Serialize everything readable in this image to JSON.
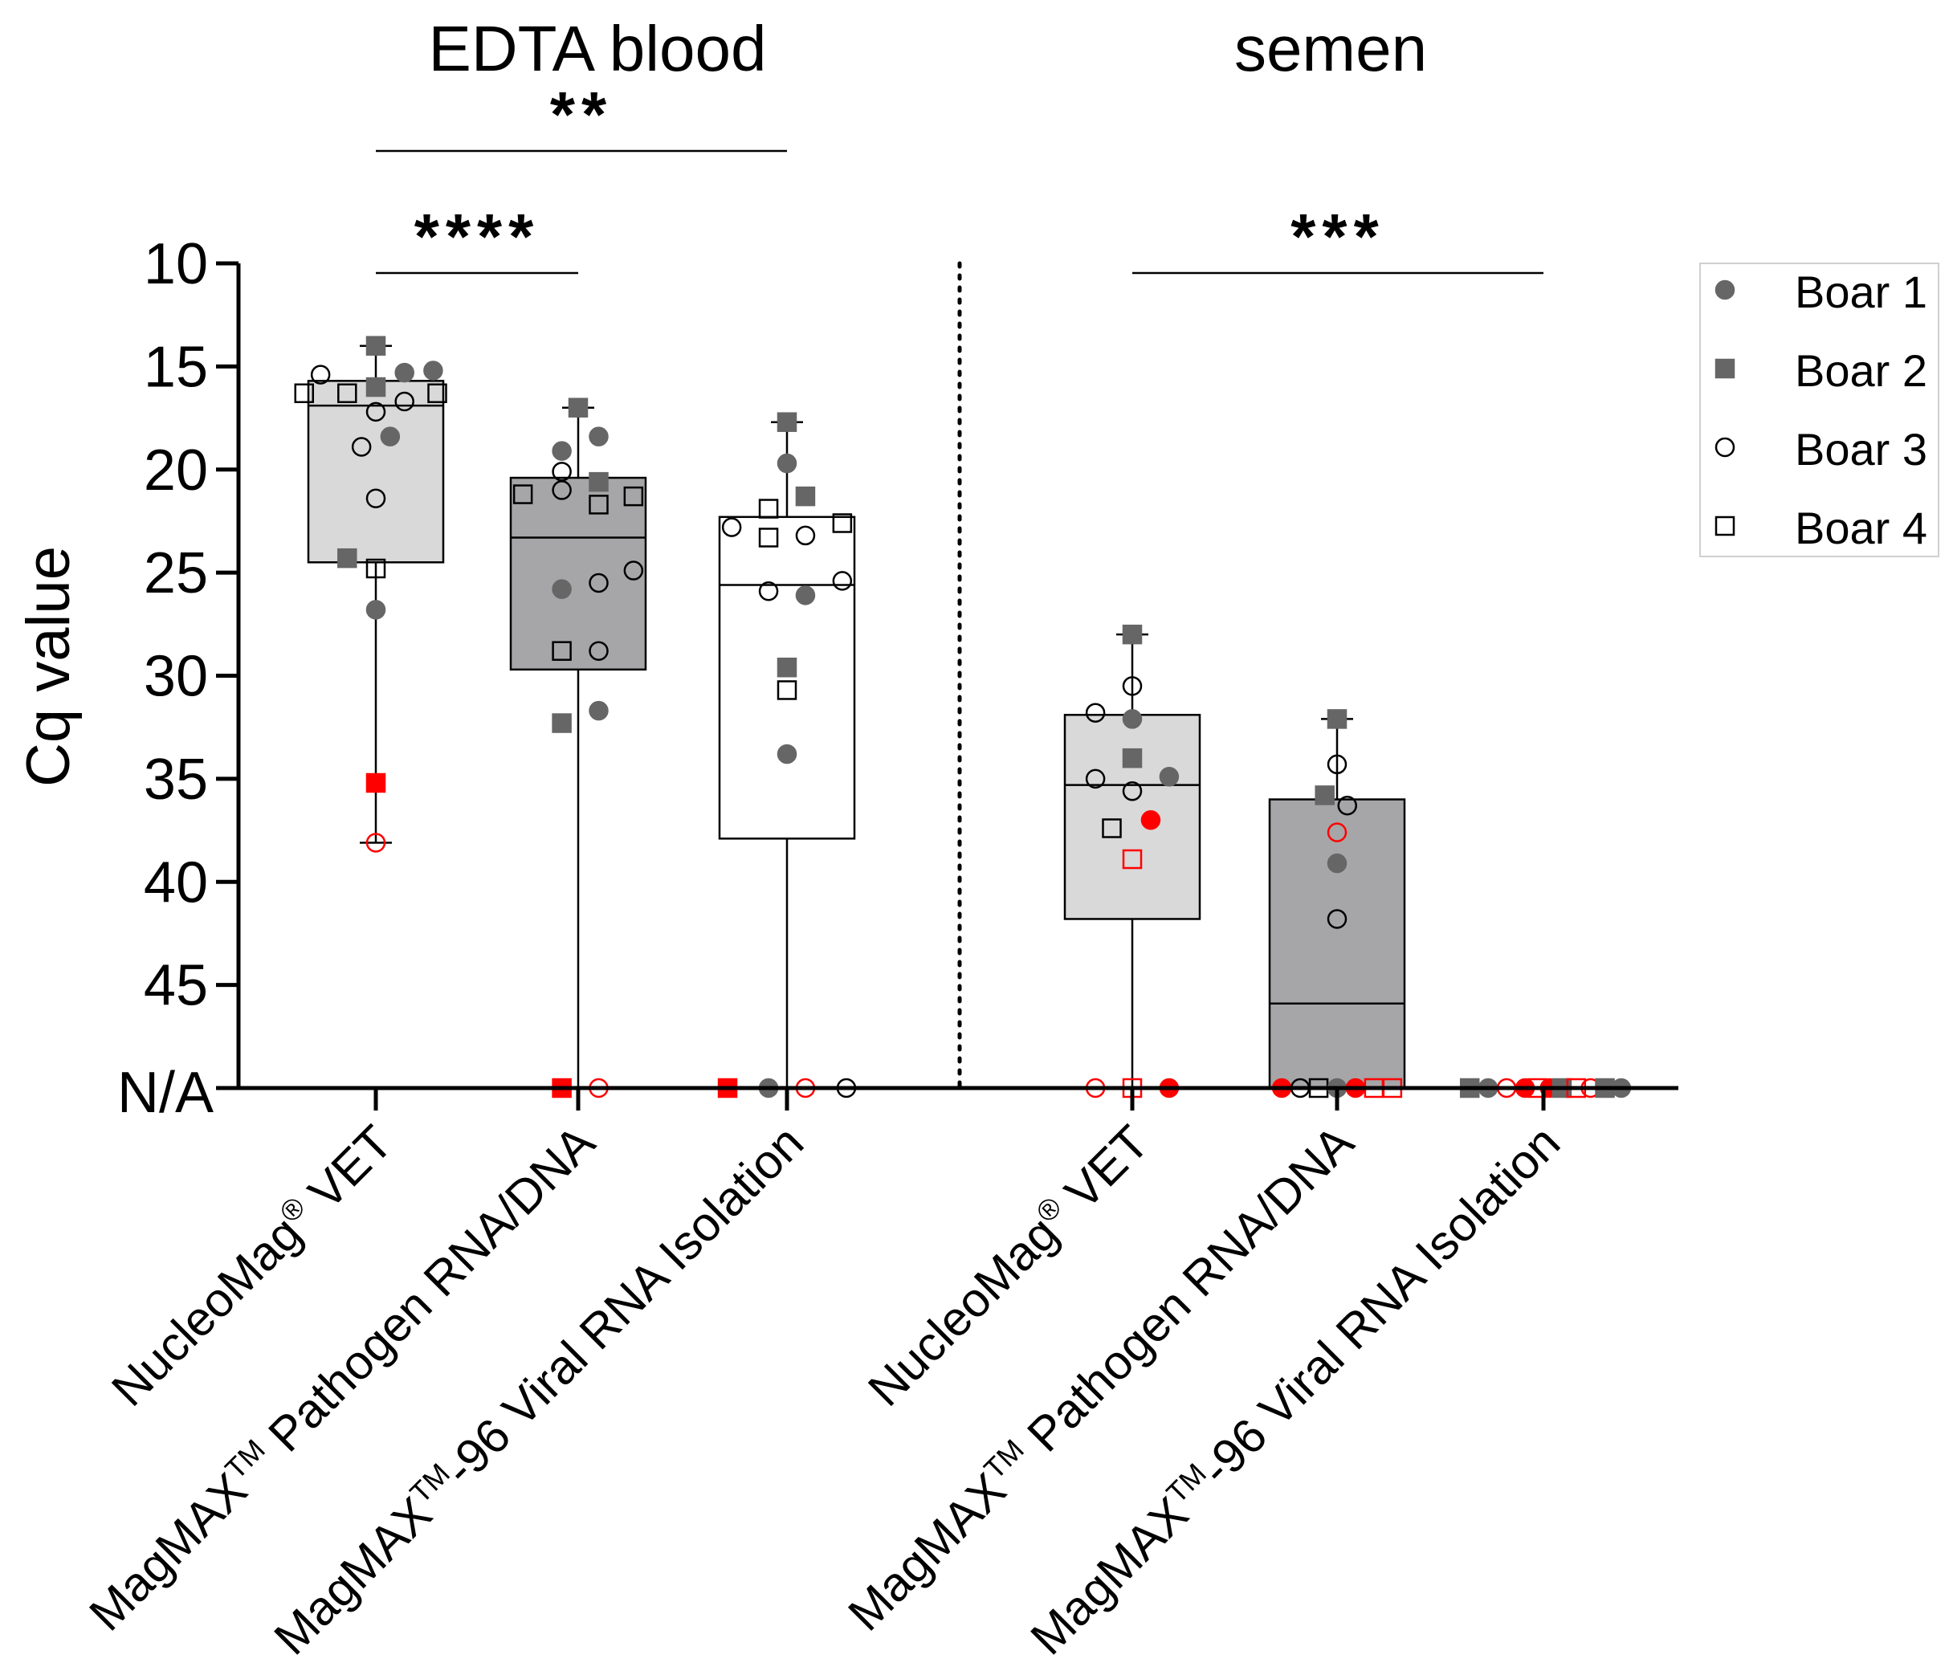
{
  "chart_data": {
    "type": "box",
    "title": "",
    "ylabel": "Cq value",
    "ylim": [
      10,
      50
    ],
    "y_inverted": true,
    "yticks": [
      10,
      15,
      20,
      25,
      30,
      35,
      40,
      45
    ],
    "na_label": "N/A",
    "na_value": 50,
    "panels": [
      {
        "name": "EDTA blood",
        "categories": [
          0,
          1,
          2
        ]
      },
      {
        "name": "semen",
        "categories": [
          3,
          4,
          5
        ]
      }
    ],
    "categories": [
      {
        "main": "NucleoMag",
        "sup": "®",
        "rest": " VET"
      },
      {
        "main": "MagMAX",
        "sup": "TM",
        "rest": " Pathogen RNA/DNA"
      },
      {
        "main": "MagMAX",
        "sup": "TM",
        "rest": "-96 Viral RNA Isolation"
      },
      {
        "main": "NucleoMag",
        "sup": "®",
        "rest": " VET"
      },
      {
        "main": "MagMAX",
        "sup": "TM",
        "rest": " Pathogen RNA/DNA"
      },
      {
        "main": "MagMAX",
        "sup": "TM",
        "rest": "-96 Viral RNA Isolation"
      }
    ],
    "boxes": [
      {
        "category": 0,
        "q1": 15.7,
        "median": 16.9,
        "q3": 24.5,
        "whisker_low": 14.0,
        "whisker_high": 38.1,
        "fill": "#d9d9d9"
      },
      {
        "category": 1,
        "q1": 20.4,
        "median": 23.3,
        "q3": 29.7,
        "whisker_low": 17.0,
        "whisker_high": 50,
        "fill": "#a6a6a8"
      },
      {
        "category": 2,
        "q1": 22.3,
        "median": 25.6,
        "q3": 37.9,
        "whisker_low": 17.7,
        "whisker_high": 50,
        "fill": "#ffffff"
      },
      {
        "category": 3,
        "q1": 31.9,
        "median": 35.3,
        "q3": 41.8,
        "whisker_low": 28.0,
        "whisker_high": 50,
        "fill": "#d9d9d9"
      },
      {
        "category": 4,
        "q1": 36.0,
        "median": 45.9,
        "q3": 50,
        "whisker_low": 32.1,
        "whisker_high": 50,
        "fill": "#a6a6a8"
      }
    ],
    "points": [
      {
        "category": 0,
        "y": 15.4,
        "dx": -0.27,
        "boar": 3,
        "red": false
      },
      {
        "category": 0,
        "y": 14.0,
        "dx": 0.0,
        "boar": 2,
        "red": false
      },
      {
        "category": 0,
        "y": 15.3,
        "dx": 0.14,
        "boar": 1,
        "red": false
      },
      {
        "category": 0,
        "y": 15.2,
        "dx": 0.28,
        "boar": 1,
        "red": false
      },
      {
        "category": 0,
        "y": 16.0,
        "dx": 0.0,
        "boar": 2,
        "red": false
      },
      {
        "category": 0,
        "y": 16.3,
        "dx": -0.35,
        "boar": 4,
        "red": false
      },
      {
        "category": 0,
        "y": 16.3,
        "dx": -0.14,
        "boar": 4,
        "red": false
      },
      {
        "category": 0,
        "y": 16.7,
        "dx": 0.14,
        "boar": 3,
        "red": false
      },
      {
        "category": 0,
        "y": 16.3,
        "dx": 0.3,
        "boar": 4,
        "red": false
      },
      {
        "category": 0,
        "y": 17.2,
        "dx": 0.0,
        "boar": 3,
        "red": false
      },
      {
        "category": 0,
        "y": 18.4,
        "dx": 0.07,
        "boar": 1,
        "red": false
      },
      {
        "category": 0,
        "y": 18.9,
        "dx": -0.07,
        "boar": 3,
        "red": false
      },
      {
        "category": 0,
        "y": 21.4,
        "dx": 0.0,
        "boar": 3,
        "red": false
      },
      {
        "category": 0,
        "y": 24.3,
        "dx": -0.14,
        "boar": 2,
        "red": false
      },
      {
        "category": 0,
        "y": 24.8,
        "dx": 0.0,
        "boar": 4,
        "red": false
      },
      {
        "category": 0,
        "y": 26.8,
        "dx": 0.0,
        "boar": 1,
        "red": false
      },
      {
        "category": 0,
        "y": 35.2,
        "dx": 0.0,
        "boar": 2,
        "red": true
      },
      {
        "category": 0,
        "y": 38.1,
        "dx": 0.0,
        "boar": 3,
        "red": true
      },
      {
        "category": 1,
        "y": 17.0,
        "dx": 0.0,
        "boar": 2,
        "red": false
      },
      {
        "category": 1,
        "y": 18.4,
        "dx": 0.1,
        "boar": 1,
        "red": false
      },
      {
        "category": 1,
        "y": 19.1,
        "dx": -0.08,
        "boar": 1,
        "red": false
      },
      {
        "category": 1,
        "y": 20.1,
        "dx": -0.08,
        "boar": 3,
        "red": false
      },
      {
        "category": 1,
        "y": 20.6,
        "dx": 0.1,
        "boar": 2,
        "red": false
      },
      {
        "category": 1,
        "y": 21.0,
        "dx": -0.08,
        "boar": 3,
        "red": false
      },
      {
        "category": 1,
        "y": 21.2,
        "dx": -0.27,
        "boar": 4,
        "red": false
      },
      {
        "category": 1,
        "y": 21.7,
        "dx": 0.1,
        "boar": 4,
        "red": false
      },
      {
        "category": 1,
        "y": 21.3,
        "dx": 0.27,
        "boar": 4,
        "red": false
      },
      {
        "category": 1,
        "y": 24.9,
        "dx": 0.27,
        "boar": 3,
        "red": false
      },
      {
        "category": 1,
        "y": 25.5,
        "dx": 0.1,
        "boar": 3,
        "red": false
      },
      {
        "category": 1,
        "y": 25.8,
        "dx": -0.08,
        "boar": 1,
        "red": false
      },
      {
        "category": 1,
        "y": 28.8,
        "dx": -0.08,
        "boar": 4,
        "red": false
      },
      {
        "category": 1,
        "y": 28.8,
        "dx": 0.1,
        "boar": 3,
        "red": false
      },
      {
        "category": 1,
        "y": 31.7,
        "dx": 0.1,
        "boar": 1,
        "red": false
      },
      {
        "category": 1,
        "y": 32.3,
        "dx": -0.08,
        "boar": 2,
        "red": false
      },
      {
        "category": 1,
        "y": 50,
        "dx": -0.08,
        "boar": 2,
        "red": true
      },
      {
        "category": 1,
        "y": 50,
        "dx": 0.1,
        "boar": 3,
        "red": true
      },
      {
        "category": 2,
        "y": 17.7,
        "dx": 0.0,
        "boar": 2,
        "red": false
      },
      {
        "category": 2,
        "y": 19.7,
        "dx": 0.0,
        "boar": 1,
        "red": false
      },
      {
        "category": 2,
        "y": 21.3,
        "dx": 0.09,
        "boar": 2,
        "red": false
      },
      {
        "category": 2,
        "y": 21.9,
        "dx": -0.09,
        "boar": 4,
        "red": false
      },
      {
        "category": 2,
        "y": 22.6,
        "dx": 0.27,
        "boar": 4,
        "red": false
      },
      {
        "category": 2,
        "y": 22.8,
        "dx": -0.27,
        "boar": 3,
        "red": false
      },
      {
        "category": 2,
        "y": 23.2,
        "dx": 0.09,
        "boar": 3,
        "red": false
      },
      {
        "category": 2,
        "y": 23.3,
        "dx": -0.09,
        "boar": 4,
        "red": false
      },
      {
        "category": 2,
        "y": 25.4,
        "dx": 0.27,
        "boar": 3,
        "red": false
      },
      {
        "category": 2,
        "y": 25.9,
        "dx": -0.09,
        "boar": 3,
        "red": false
      },
      {
        "category": 2,
        "y": 26.1,
        "dx": 0.09,
        "boar": 1,
        "red": false
      },
      {
        "category": 2,
        "y": 29.6,
        "dx": 0.0,
        "boar": 2,
        "red": false
      },
      {
        "category": 2,
        "y": 30.7,
        "dx": 0.0,
        "boar": 4,
        "red": false
      },
      {
        "category": 2,
        "y": 33.8,
        "dx": 0.0,
        "boar": 1,
        "red": false
      },
      {
        "category": 2,
        "y": 50,
        "dx": -0.29,
        "boar": 2,
        "red": true
      },
      {
        "category": 2,
        "y": 50,
        "dx": -0.09,
        "boar": 1,
        "red": false
      },
      {
        "category": 2,
        "y": 50,
        "dx": 0.09,
        "boar": 3,
        "red": true
      },
      {
        "category": 2,
        "y": 50,
        "dx": 0.29,
        "boar": 3,
        "red": false
      },
      {
        "category": 3,
        "y": 28.0,
        "dx": 0.0,
        "boar": 2,
        "red": false
      },
      {
        "category": 3,
        "y": 30.5,
        "dx": 0.0,
        "boar": 3,
        "red": false
      },
      {
        "category": 3,
        "y": 31.8,
        "dx": -0.18,
        "boar": 3,
        "red": false
      },
      {
        "category": 3,
        "y": 32.1,
        "dx": 0.0,
        "boar": 1,
        "red": false
      },
      {
        "category": 3,
        "y": 34.0,
        "dx": 0.0,
        "boar": 2,
        "red": false
      },
      {
        "category": 3,
        "y": 34.9,
        "dx": 0.18,
        "boar": 1,
        "red": false
      },
      {
        "category": 3,
        "y": 35.0,
        "dx": -0.18,
        "boar": 3,
        "red": false
      },
      {
        "category": 3,
        "y": 35.6,
        "dx": 0.0,
        "boar": 3,
        "red": false
      },
      {
        "category": 3,
        "y": 37.0,
        "dx": 0.09,
        "boar": 1,
        "red": true
      },
      {
        "category": 3,
        "y": 37.4,
        "dx": -0.1,
        "boar": 4,
        "red": false
      },
      {
        "category": 3,
        "y": 38.9,
        "dx": 0.0,
        "boar": 4,
        "red": true
      },
      {
        "category": 3,
        "y": 50,
        "dx": -0.18,
        "boar": 3,
        "red": true
      },
      {
        "category": 3,
        "y": 50,
        "dx": 0.0,
        "boar": 4,
        "red": true
      },
      {
        "category": 3,
        "y": 50,
        "dx": 0.18,
        "boar": 1,
        "red": true
      },
      {
        "category": 4,
        "y": 32.1,
        "dx": 0.0,
        "boar": 2,
        "red": false
      },
      {
        "category": 4,
        "y": 34.3,
        "dx": 0.0,
        "boar": 3,
        "red": false
      },
      {
        "category": 4,
        "y": 35.8,
        "dx": -0.06,
        "boar": 2,
        "red": false
      },
      {
        "category": 4,
        "y": 36.3,
        "dx": 0.05,
        "boar": 3,
        "red": false
      },
      {
        "category": 4,
        "y": 37.6,
        "dx": 0.0,
        "boar": 3,
        "red": true
      },
      {
        "category": 4,
        "y": 39.1,
        "dx": 0.0,
        "boar": 1,
        "red": false
      },
      {
        "category": 4,
        "y": 41.8,
        "dx": 0.0,
        "boar": 3,
        "red": false
      },
      {
        "category": 4,
        "y": 50,
        "dx": -0.27,
        "boar": 1,
        "red": true
      },
      {
        "category": 4,
        "y": 50,
        "dx": -0.18,
        "boar": 3,
        "red": false
      },
      {
        "category": 4,
        "y": 50,
        "dx": -0.09,
        "boar": 4,
        "red": false
      },
      {
        "category": 4,
        "y": 50,
        "dx": 0.0,
        "boar": 1,
        "red": false
      },
      {
        "category": 4,
        "y": 50,
        "dx": 0.09,
        "boar": 1,
        "red": true
      },
      {
        "category": 4,
        "y": 50,
        "dx": 0.18,
        "boar": 4,
        "red": true
      },
      {
        "category": 4,
        "y": 50,
        "dx": 0.27,
        "boar": 4,
        "red": true
      },
      {
        "category": 5,
        "y": 50,
        "dx": -0.36,
        "boar": 2,
        "red": false
      },
      {
        "category": 5,
        "y": 50,
        "dx": -0.27,
        "boar": 1,
        "red": false
      },
      {
        "category": 5,
        "y": 50,
        "dx": -0.18,
        "boar": 3,
        "red": true
      },
      {
        "category": 5,
        "y": 50,
        "dx": -0.09,
        "boar": 1,
        "red": true
      },
      {
        "category": 5,
        "y": 50,
        "dx": -0.03,
        "boar": 4,
        "red": true
      },
      {
        "category": 5,
        "y": 50,
        "dx": 0.03,
        "boar": 1,
        "red": true
      },
      {
        "category": 5,
        "y": 50,
        "dx": 0.09,
        "boar": 2,
        "red": false
      },
      {
        "category": 5,
        "y": 50,
        "dx": 0.16,
        "boar": 4,
        "red": true
      },
      {
        "category": 5,
        "y": 50,
        "dx": 0.23,
        "boar": 3,
        "red": true
      },
      {
        "category": 5,
        "y": 50,
        "dx": 0.3,
        "boar": 2,
        "red": false
      },
      {
        "category": 5,
        "y": 50,
        "dx": 0.38,
        "boar": 1,
        "red": false
      }
    ],
    "significance": [
      {
        "from": 0,
        "to": 2,
        "label": "**",
        "level": 2
      },
      {
        "from": 0,
        "to": 1,
        "label": "****",
        "level": 1
      },
      {
        "from": 3,
        "to": 5,
        "label": "***",
        "level": 1
      }
    ],
    "legend": {
      "position": "top-right",
      "entries": [
        {
          "label": "Boar 1",
          "marker": "circle",
          "filled": true
        },
        {
          "label": "Boar 2",
          "marker": "square",
          "filled": true
        },
        {
          "label": "Boar 3",
          "marker": "circle",
          "filled": false
        },
        {
          "label": "Boar 4",
          "marker": "square",
          "filled": false
        }
      ]
    },
    "colors": {
      "marker_gray": "#666666",
      "marker_red": "#ff0000",
      "axis": "#000000"
    }
  }
}
